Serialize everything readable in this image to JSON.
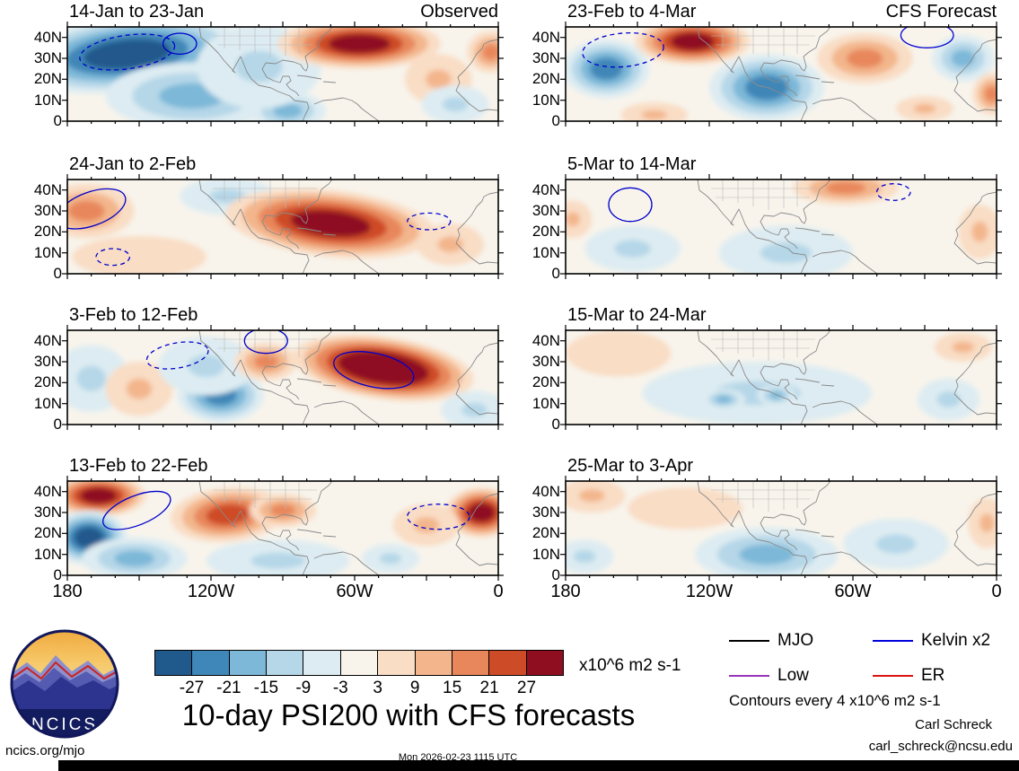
{
  "meta": {
    "site": "ncics.org/mjo",
    "timestamp": "Mon 2026-02-23 1115 UTC",
    "author": "Carl Schreck",
    "email": "carl_schreck@ncsu.edu",
    "logo_text": "NCICS"
  },
  "chart_data": {
    "type": "heatmap",
    "title": "10-day PSI200 with CFS forecasts",
    "variable": "PSI200 anomaly",
    "units_label": "x10^6 m2 s-1",
    "contour_note": "Contours every 4 x10^6 m2 s-1",
    "map_bg": "#f8f4ec",
    "lat_ticks": [
      "40N",
      "30N",
      "20N",
      "10N",
      "0"
    ],
    "lat_values": [
      40,
      30,
      20,
      10,
      0
    ],
    "lon_ticks": [
      "180",
      "120W",
      "60W",
      "0"
    ],
    "lon_values_w": [
      180,
      120,
      60,
      0
    ],
    "colorbar": {
      "tick_labels": [
        "-27",
        "-21",
        "-15",
        "-9",
        "-3",
        "3",
        "9",
        "15",
        "21",
        "27"
      ],
      "colors": [
        "#20598c",
        "#3f87b8",
        "#7db8d8",
        "#b5d7e8",
        "#ddecf2",
        "#f8f4ec",
        "#f9ddc5",
        "#f3b68c",
        "#e8875c",
        "#ce4b28",
        "#8f0e20"
      ]
    },
    "legend": [
      {
        "label": "MJO",
        "color": "#000000"
      },
      {
        "label": "Kelvin x2",
        "color": "#0000dd"
      },
      {
        "label": "Low",
        "color": "#9933bb"
      },
      {
        "label": "ER",
        "color": "#dd1111"
      }
    ],
    "feature_format": [
      "anomaly_value_x10^6_m2_s-1",
      "lon_degW",
      "lat_degN",
      "halfwidth_lon_deg",
      "halfwidth_lat_deg",
      "rotation_deg"
    ],
    "kelvin_format": [
      "lon_degW",
      "lat_degN",
      "rx_lon_deg",
      "ry_lat_deg",
      "style",
      "rotation_deg"
    ],
    "columns": [
      {
        "header": "Observed",
        "panels": [
          {
            "title": "14-Jan to 23-Jan",
            "features": [
              [
                -27,
                155,
                32,
                48,
                18,
                -6
              ],
              [
                -15,
                128,
                12,
                36,
                16,
                0
              ],
              [
                -15,
                88,
                5,
                16,
                9,
                0
              ],
              [
                -9,
                100,
                26,
                26,
                20,
                0
              ],
              [
                27,
                58,
                37,
                34,
                12,
                0
              ],
              [
                9,
                25,
                20,
                14,
                12,
                0
              ],
              [
                15,
                3,
                33,
                10,
                10,
                0
              ],
              [
                -9,
                18,
                8,
                14,
                9,
                0
              ]
            ],
            "kelvin": [
              [
                155,
                33,
                20,
                8,
                "dashed",
                -8
              ],
              [
                133,
                37,
                7,
                5,
                "solid",
                0
              ]
            ]
          },
          {
            "title": "24-Jan to 2-Feb",
            "features": [
              [
                15,
                172,
                30,
                20,
                13,
                0
              ],
              [
                -9,
                113,
                37,
                20,
                9,
                0
              ],
              [
                27,
                70,
                24,
                44,
                16,
                6
              ],
              [
                9,
                20,
                14,
                14,
                10,
                0
              ],
              [
                3,
                150,
                8,
                28,
                10,
                0
              ]
            ],
            "kelvin": [
              [
                170,
                31,
                15,
                8,
                "solid",
                -20
              ],
              [
                161,
                8,
                7,
                4,
                "dashed",
                0
              ],
              [
                29,
                25,
                9,
                4,
                "dashed",
                0
              ]
            ]
          },
          {
            "title": "3-Feb to 12-Feb",
            "features": [
              [
                -9,
                170,
                22,
                16,
                16,
                0
              ],
              [
                9,
                150,
                17,
                14,
                13,
                0
              ],
              [
                -21,
                116,
                14,
                18,
                13,
                0
              ],
              [
                -9,
                122,
                28,
                20,
                14,
                0
              ],
              [
                33,
                48,
                27,
                38,
                15,
                8
              ],
              [
                15,
                97,
                30,
                13,
                9,
                0
              ],
              [
                -9,
                10,
                7,
                14,
                9,
                0
              ]
            ],
            "kelvin": [
              [
                134,
                33,
                13,
                6,
                "dashed",
                -10
              ],
              [
                97,
                40,
                9,
                6,
                "solid",
                0
              ],
              [
                52,
                26,
                17,
                8,
                "solid",
                12
              ]
            ]
          },
          {
            "title": "13-Feb to 22-Feb",
            "features": [
              [
                27,
                167,
                38,
                20,
                10,
                0
              ],
              [
                -27,
                171,
                18,
                16,
                13,
                0
              ],
              [
                -15,
                152,
                8,
                22,
                10,
                0
              ],
              [
                21,
                113,
                29,
                24,
                13,
                -5
              ],
              [
                15,
                90,
                31,
                14,
                8,
                0
              ],
              [
                -9,
                92,
                7,
                30,
                10,
                0
              ],
              [
                27,
                7,
                30,
                15,
                12,
                0
              ],
              [
                9,
                30,
                24,
                14,
                10,
                0
              ],
              [
                -9,
                45,
                8,
                12,
                7,
                0
              ]
            ],
            "kelvin": [
              [
                151,
                31,
                15,
                7,
                "solid",
                -22
              ],
              [
                25,
                28,
                13,
                6,
                "dashed",
                0
              ]
            ]
          }
        ]
      },
      {
        "header": "CFS Forecast",
        "panels": [
          {
            "title": "23-Feb to 4-Mar",
            "features": [
              [
                -21,
                163,
                25,
                18,
                14,
                0
              ],
              [
                27,
                127,
                38,
                24,
                11,
                0
              ],
              [
                -21,
                96,
                16,
                24,
                16,
                0
              ],
              [
                15,
                55,
                30,
                20,
                12,
                0
              ],
              [
                -15,
                14,
                30,
                13,
                11,
                0
              ],
              [
                15,
                2,
                13,
                8,
                10,
                0
              ],
              [
                9,
                143,
                3,
                14,
                6,
                0
              ],
              [
                9,
                30,
                6,
                12,
                6,
                0
              ]
            ],
            "kelvin": [
              [
                156,
                34,
                17,
                8,
                "dashed",
                -5
              ],
              [
                29,
                41,
                11,
                6,
                "solid",
                0
              ]
            ]
          },
          {
            "title": "5-Mar to 14-Mar",
            "features": [
              [
                -9,
                152,
                12,
                20,
                11,
                0
              ],
              [
                -9,
                88,
                10,
                28,
                13,
                0
              ],
              [
                15,
                63,
                41,
                22,
                8,
                0
              ],
              [
                9,
                7,
                20,
                9,
                13,
                0
              ],
              [
                9,
                177,
                26,
                8,
                9,
                0
              ]
            ],
            "kelvin": [
              [
                153,
                33,
                9,
                8,
                "solid",
                0
              ],
              [
                43,
                39,
                7,
                4,
                "dashed",
                0
              ]
            ]
          },
          {
            "title": "15-Mar to 24-Mar",
            "features": [
              [
                -9,
                100,
                15,
                48,
                15,
                0
              ],
              [
                -15,
                114,
                12,
                9,
                5,
                0
              ],
              [
                -15,
                92,
                14,
                8,
                5,
                0
              ],
              [
                3,
                158,
                34,
                22,
                11,
                0
              ],
              [
                9,
                14,
                37,
                12,
                7,
                0
              ],
              [
                -9,
                20,
                12,
                13,
                10,
                0
              ]
            ],
            "kelvin": []
          },
          {
            "title": "25-Mar to 3-Apr",
            "features": [
              [
                9,
                169,
                38,
                14,
                8,
                0
              ],
              [
                -15,
                96,
                10,
                30,
                13,
                0
              ],
              [
                -9,
                42,
                15,
                22,
                12,
                0
              ],
              [
                9,
                4,
                25,
                8,
                12,
                0
              ],
              [
                -9,
                172,
                9,
                12,
                8,
                0
              ],
              [
                3,
                130,
                32,
                24,
                10,
                0
              ]
            ],
            "kelvin": []
          }
        ]
      }
    ]
  }
}
